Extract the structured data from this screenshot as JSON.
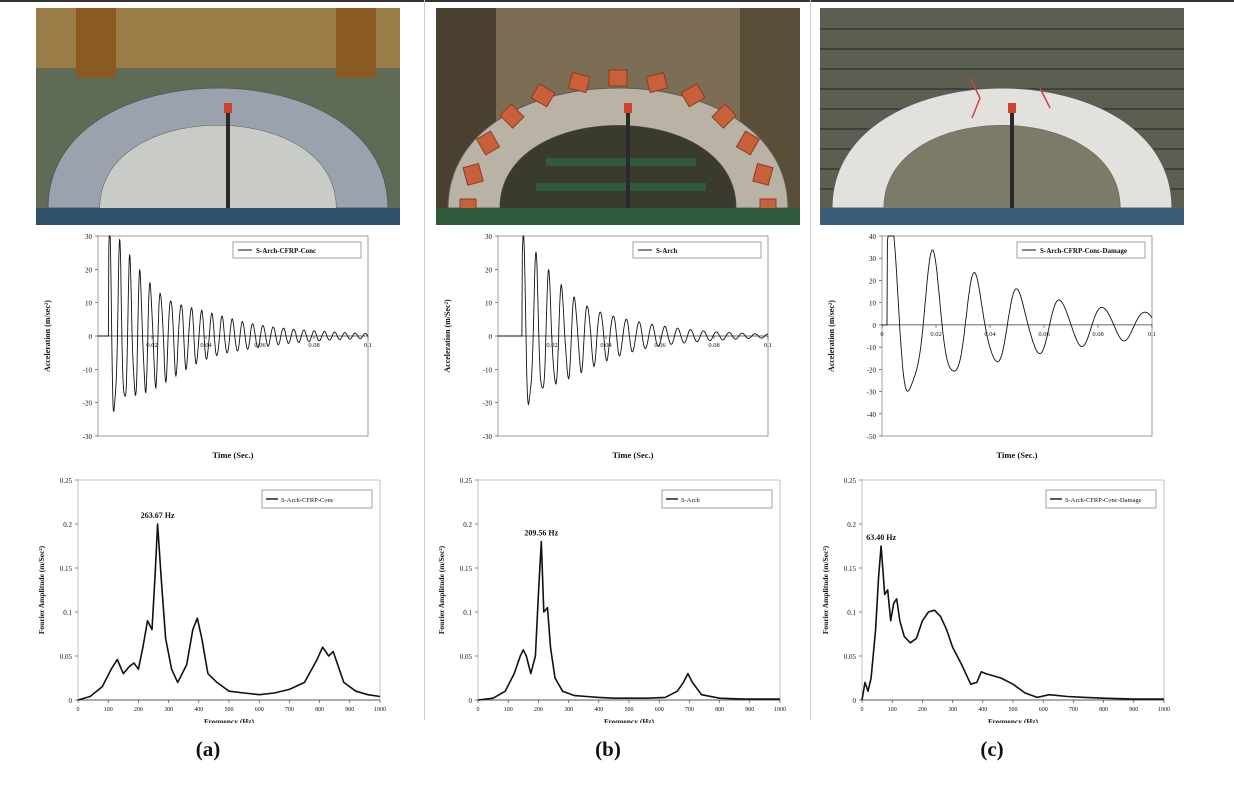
{
  "figure": {
    "panels": [
      {
        "id": "a",
        "label": "(a)",
        "photo": {
          "kind": "cfrp-arch",
          "colors": {
            "bg": "#5f6b55",
            "arch": "#9aa3ad",
            "under": "#c9ccc6",
            "base": "#2f4f6a"
          }
        },
        "time_chart": {
          "type": "line",
          "legend": "S-Arch-CFRP-Conc",
          "ylabel": "Acceleration (m/sec²)",
          "xlabel": "Time (Sec.)",
          "xlim": [
            0,
            0.1
          ],
          "ylim": [
            -30,
            30
          ],
          "yticks": [
            30,
            20,
            10,
            0,
            -10,
            -20,
            -30
          ],
          "xticks": [
            "0.02",
            "0.04",
            "0.06",
            "0.08",
            "0.1"
          ],
          "signal": {
            "t0": 0.004,
            "amp": 28,
            "freq": 263.7,
            "decay": 38
          }
        },
        "fft_chart": {
          "type": "line",
          "legend": "S-Arch-CFRP-Conc",
          "ylabel": "Fourier Amplitude (m/Sec²)",
          "xlabel": "Frequency (Hz)",
          "xlim": [
            0,
            1000
          ],
          "ylim": [
            0,
            0.25
          ],
          "yticks": [
            "0.25",
            "0.2",
            "0.15",
            "0.1",
            "0.05",
            "0"
          ],
          "xticks": [
            "0",
            "100",
            "200",
            "300",
            "400",
            "500",
            "600",
            "700",
            "800",
            "900",
            "1000"
          ],
          "peak_label": "263.67 Hz",
          "peak": {
            "x": 263.67,
            "y": 0.2
          },
          "x": [
            0,
            40,
            80,
            110,
            130,
            150,
            170,
            185,
            200,
            215,
            230,
            245,
            255,
            263.67,
            275,
            290,
            310,
            330,
            360,
            380,
            395,
            410,
            430,
            460,
            500,
            550,
            600,
            650,
            700,
            750,
            790,
            810,
            830,
            845,
            860,
            880,
            920,
            960,
            1000
          ],
          "y": [
            0,
            0.004,
            0.015,
            0.035,
            0.046,
            0.03,
            0.038,
            0.042,
            0.035,
            0.06,
            0.09,
            0.08,
            0.14,
            0.2,
            0.14,
            0.07,
            0.035,
            0.02,
            0.04,
            0.08,
            0.093,
            0.07,
            0.03,
            0.02,
            0.01,
            0.008,
            0.006,
            0.008,
            0.012,
            0.02,
            0.045,
            0.06,
            0.05,
            0.055,
            0.04,
            0.02,
            0.01,
            0.006,
            0.004
          ]
        }
      },
      {
        "id": "b",
        "label": "(b)",
        "photo": {
          "kind": "brick-arch",
          "colors": {
            "bg": "#7b6e55",
            "arch": "#b9b2a5",
            "under": "#3b3a2e",
            "base": "#2f5a3c"
          }
        },
        "time_chart": {
          "type": "line",
          "legend": "S-Arch",
          "ylabel": "Acceleration (m/Sec²)",
          "xlabel": "Time (Sec.)",
          "xlim": [
            0,
            0.1
          ],
          "ylim": [
            -30,
            30
          ],
          "yticks": [
            30,
            20,
            10,
            0,
            -10,
            -20,
            -30
          ],
          "xticks": [
            "0.02",
            "0.04",
            "0.06",
            "0.08",
            "0.1"
          ],
          "signal": {
            "t0": 0.009,
            "amp": 26,
            "freq": 209.5,
            "decay": 42
          }
        },
        "fft_chart": {
          "type": "line",
          "legend": "S-Arch",
          "ylabel": "Fourier Amplitude (m/Sec²)",
          "xlabel": "Frequency (Hz)",
          "xlim": [
            0,
            1000
          ],
          "ylim": [
            0,
            0.25
          ],
          "yticks": [
            "0.25",
            "0.2",
            "0.15",
            "0.1",
            "0.05",
            "0"
          ],
          "xticks": [
            "0",
            "100",
            "200",
            "300",
            "400",
            "500",
            "600",
            "700",
            "800",
            "900",
            "1000"
          ],
          "peak_label": "209.56 Hz",
          "peak": {
            "x": 209.56,
            "y": 0.18
          },
          "x": [
            0,
            50,
            90,
            120,
            140,
            150,
            160,
            175,
            190,
            200,
            209.56,
            218,
            230,
            240,
            255,
            280,
            320,
            360,
            400,
            450,
            500,
            560,
            620,
            660,
            680,
            695,
            710,
            740,
            800,
            880,
            1000
          ],
          "y": [
            0,
            0.002,
            0.01,
            0.03,
            0.05,
            0.057,
            0.05,
            0.03,
            0.05,
            0.12,
            0.18,
            0.1,
            0.105,
            0.06,
            0.025,
            0.01,
            0.005,
            0.004,
            0.003,
            0.002,
            0.002,
            0.002,
            0.003,
            0.01,
            0.02,
            0.03,
            0.02,
            0.006,
            0.002,
            0.001,
            0.001
          ]
        }
      },
      {
        "id": "c",
        "label": "(c)",
        "photo": {
          "kind": "damaged-arch",
          "colors": {
            "bg": "#5a5f52",
            "arch": "#e3e1de",
            "under": "#7d7a68",
            "base": "#3a5d7a"
          }
        },
        "time_chart": {
          "type": "line",
          "legend": "S-Arch-CFRP-Conc-Damage",
          "ylabel": "Acceleration (m/sec²)",
          "xlabel": "Time (Sec.)",
          "xlim": [
            0,
            0.1
          ],
          "ylim": [
            -50,
            40
          ],
          "yticks": [
            40,
            30,
            20,
            10,
            0,
            -10,
            -20,
            -30,
            -40,
            -50
          ],
          "xticks": [
            "0",
            "0.02",
            "0.04",
            "0.06",
            "0.08",
            "0.1"
          ],
          "signal": {
            "t0": 0.002,
            "amp": 40,
            "freq": 63.4,
            "decay": 20
          }
        },
        "fft_chart": {
          "type": "line",
          "legend": "S-Arch-CFRP-Conc-Damage",
          "ylabel": "Fourier Amplitude (m/Sec²)",
          "xlabel": "Frequency (Hz)",
          "xlim": [
            0,
            1000
          ],
          "ylim": [
            0,
            0.25
          ],
          "yticks": [
            "0.25",
            "0.2",
            "0.15",
            "0.1",
            "0.05",
            "0"
          ],
          "xticks": [
            "0",
            "100",
            "200",
            "300",
            "400",
            "500",
            "600",
            "700",
            "800",
            "900",
            "1000"
          ],
          "peak_label": "63.40 Hz",
          "peak": {
            "x": 63.4,
            "y": 0.175
          },
          "x": [
            0,
            10,
            20,
            30,
            45,
            55,
            63.4,
            75,
            85,
            95,
            105,
            115,
            125,
            140,
            160,
            180,
            200,
            220,
            240,
            260,
            280,
            300,
            330,
            360,
            380,
            395,
            410,
            430,
            460,
            500,
            540,
            580,
            620,
            680,
            740,
            800,
            900,
            1000
          ],
          "y": [
            0,
            0.02,
            0.01,
            0.025,
            0.08,
            0.14,
            0.175,
            0.12,
            0.125,
            0.09,
            0.11,
            0.115,
            0.09,
            0.072,
            0.065,
            0.07,
            0.09,
            0.1,
            0.102,
            0.095,
            0.08,
            0.06,
            0.04,
            0.018,
            0.02,
            0.032,
            0.03,
            0.028,
            0.025,
            0.018,
            0.008,
            0.003,
            0.006,
            0.004,
            0.003,
            0.002,
            0.001,
            0.001
          ]
        }
      }
    ]
  }
}
